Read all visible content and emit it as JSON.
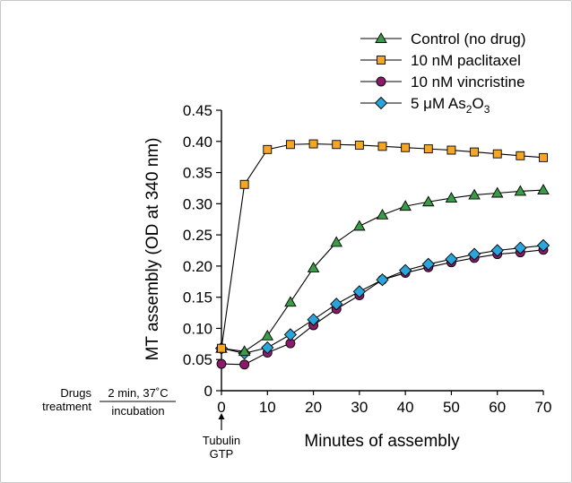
{
  "chart_data": {
    "type": "line",
    "xlabel": "Minutes of assembly",
    "ylabel": "MT assembly (OD at 340 nm)",
    "xlim": [
      0,
      70
    ],
    "ylim": [
      0,
      0.45
    ],
    "x_ticks": [
      "0",
      "10",
      "20",
      "30",
      "40",
      "50",
      "60",
      "70"
    ],
    "y_ticks": [
      "0",
      "0.05",
      "0.10",
      "0.15",
      "0.20",
      "0.25",
      "0.30",
      "0.35",
      "0.40",
      "0.45"
    ],
    "grid": false,
    "legend_position": "top-right",
    "x": [
      0,
      5,
      10,
      15,
      20,
      25,
      30,
      35,
      40,
      45,
      50,
      55,
      60,
      65,
      70
    ],
    "series": [
      {
        "name": "Control (no drug)",
        "marker": "triangle",
        "color": "#3a9b48",
        "values": [
          0.068,
          0.063,
          0.088,
          0.142,
          0.197,
          0.238,
          0.264,
          0.282,
          0.296,
          0.303,
          0.309,
          0.314,
          0.317,
          0.32,
          0.322
        ]
      },
      {
        "name": "10 nM paclitaxel",
        "marker": "square",
        "color": "#f5a623",
        "values": [
          0.068,
          0.331,
          0.387,
          0.395,
          0.396,
          0.395,
          0.394,
          0.392,
          0.39,
          0.388,
          0.386,
          0.383,
          0.38,
          0.377,
          0.374
        ]
      },
      {
        "name": "10 nM vincristine",
        "marker": "circle",
        "color": "#8b1a6b",
        "values": [
          0.043,
          0.042,
          0.061,
          0.076,
          0.105,
          0.131,
          0.153,
          0.178,
          0.189,
          0.198,
          0.206,
          0.213,
          0.219,
          0.222,
          0.226
        ]
      },
      {
        "name": "5 μM As₂O₃",
        "legend_text": "5 μM As",
        "legend_sub1": "2",
        "legend_mid": "O",
        "legend_sub2": "3",
        "marker": "diamond",
        "color": "#2aa5dc",
        "values": [
          0.068,
          0.06,
          0.069,
          0.09,
          0.114,
          0.139,
          0.159,
          0.178,
          0.193,
          0.203,
          0.211,
          0.219,
          0.225,
          0.229,
          0.233
        ]
      }
    ],
    "annotations": {
      "drugs_line1": "Drugs",
      "drugs_line2": "treatment",
      "incubation_top": "2 min, 37˚C",
      "incubation_bottom": "incubation",
      "tubulin_line1": "Tubulin",
      "tubulin_line2": "GTP"
    }
  }
}
